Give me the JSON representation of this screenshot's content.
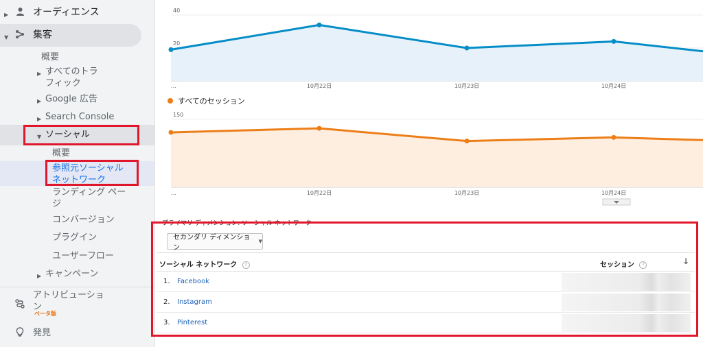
{
  "sidebar": {
    "audience": "オーディエンス",
    "acquisition": "集客",
    "overview": "概要",
    "all_traffic": [
      "すべてのトラ",
      "フィック"
    ],
    "google_ads": "Google 広告",
    "search_console": "Search Console",
    "social": "ソーシャル",
    "social_overview": "概要",
    "network_referrals": [
      "参照元ソーシャル",
      "ネットワーク"
    ],
    "landing_pages": [
      "ランディング ペー",
      "ジ"
    ],
    "conversions": "コンバージョン",
    "plugins": "プラグイン",
    "users_flow": "ユーザーフロー",
    "campaigns": "キャンペーン",
    "attribution": [
      "アトリビューショ",
      "ン"
    ],
    "beta": "ベータ版",
    "discover": "発見"
  },
  "chart_data": [
    {
      "type": "line",
      "x": [
        "…",
        "10月22日",
        "10月23日",
        "10月24日",
        ""
      ],
      "values": [
        19,
        34,
        20,
        24,
        18
      ],
      "ylim": [
        0,
        45
      ],
      "yticks": [
        20,
        40
      ],
      "color": "#058dc7"
    },
    {
      "type": "line",
      "series": [
        {
          "name": "すべてのセッション",
          "values": [
            121,
            130,
            102,
            110,
            104
          ]
        }
      ],
      "x": [
        "…",
        "10月22日",
        "10月23日",
        "10月24日",
        ""
      ],
      "ylim": [
        0,
        165
      ],
      "yticks": [
        50,
        100,
        150
      ],
      "color": "#ed7e17"
    }
  ],
  "table": {
    "primary_dimension": "プライマリ ディメンション: ソーシャル ネットワーク",
    "secondary_button": "セカンダリ ディメンション",
    "col_network": "ソーシャル ネットワーク",
    "col_sessions": "セッション",
    "rows": [
      {
        "idx": "1.",
        "name": "Facebook"
      },
      {
        "idx": "2.",
        "name": "Instagram"
      },
      {
        "idx": "3.",
        "name": "Pinterest"
      }
    ]
  }
}
